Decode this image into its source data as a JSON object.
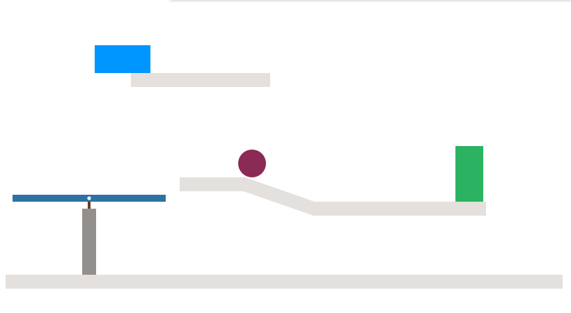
{
  "game": {
    "title": "",
    "colors": {
      "background": "#ffffff",
      "platform": "#e4e0dd",
      "blue_block": "#0096ff",
      "ball": "#8b2a55",
      "goal_block": "#2bb362",
      "seesaw_plank": "#2c73a2",
      "seesaw_post": "#938f8d",
      "pivot_connector": "#6b3a2a",
      "pivot_pin": "#ffffff"
    },
    "objects": [
      {
        "name": "blue-block",
        "kind": "dynamic-box",
        "shape": "rectangle"
      },
      {
        "name": "ball",
        "kind": "dynamic-ball",
        "shape": "circle"
      },
      {
        "name": "goal-block",
        "kind": "target",
        "shape": "rectangle"
      },
      {
        "name": "seesaw",
        "kind": "pivot-plank",
        "shape": "rectangle"
      }
    ]
  }
}
